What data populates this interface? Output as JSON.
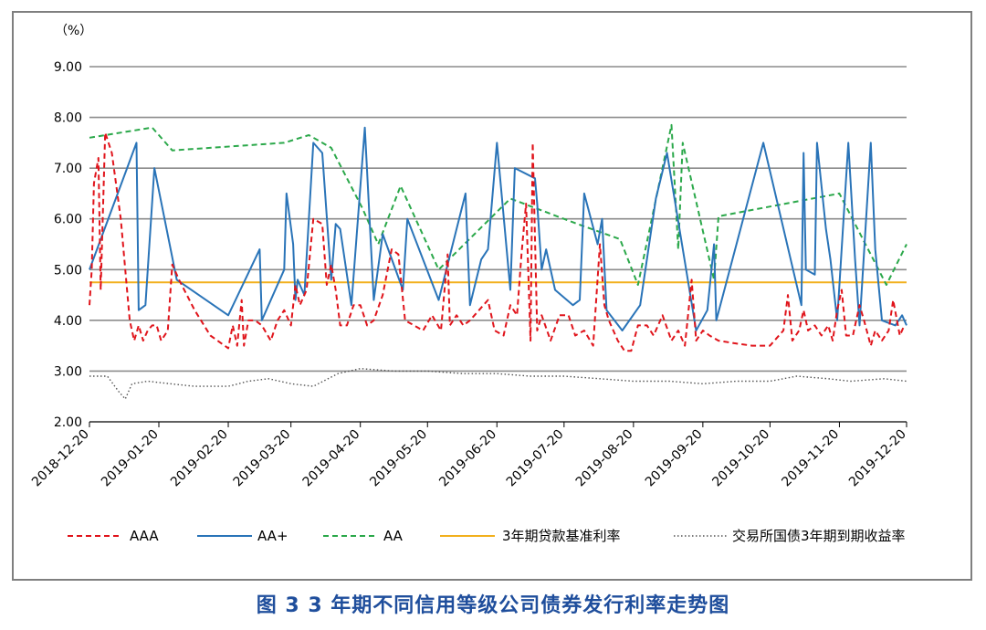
{
  "caption": "图 3  3 年期不同信用等级公司债券发行利率走势图",
  "chart_data": {
    "type": "line",
    "unit_label": "（%）",
    "ylim": [
      2.0,
      9.0
    ],
    "y_ticks": [
      "2.00",
      "3.00",
      "4.00",
      "5.00",
      "6.00",
      "7.00",
      "8.00",
      "9.00"
    ],
    "x_ticks": [
      "2018-12-20",
      "2019-01-20",
      "2019-02-20",
      "2019-03-20",
      "2019-04-20",
      "2019-05-20",
      "2019-06-20",
      "2019-07-20",
      "2019-08-20",
      "2019-09-20",
      "2019-10-20",
      "2019-11-20",
      "2019-12-20"
    ],
    "grid": true,
    "legend_position": "bottom",
    "series": [
      {
        "name": "AAA",
        "color": "#e0141b",
        "style": "dashed",
        "points": [
          [
            "2018-12-20",
            4.3
          ],
          [
            "2018-12-21",
            5.0
          ],
          [
            "2018-12-22",
            6.7
          ],
          [
            "2018-12-24",
            7.2
          ],
          [
            "2018-12-25",
            4.6
          ],
          [
            "2018-12-27",
            7.7
          ],
          [
            "2018-12-30",
            7.3
          ],
          [
            "2019-01-03",
            6.0
          ],
          [
            "2019-01-07",
            4.0
          ],
          [
            "2019-01-09",
            3.6
          ],
          [
            "2019-01-11",
            3.9
          ],
          [
            "2019-01-13",
            3.6
          ],
          [
            "2019-01-15",
            3.8
          ],
          [
            "2019-01-17",
            3.9
          ],
          [
            "2019-01-19",
            3.9
          ],
          [
            "2019-01-21",
            3.6
          ],
          [
            "2019-01-24",
            3.8
          ],
          [
            "2019-01-26",
            5.1
          ],
          [
            "2019-01-29",
            4.8
          ],
          [
            "2019-02-05",
            4.2
          ],
          [
            "2019-02-12",
            3.7
          ],
          [
            "2019-02-20",
            3.45
          ],
          [
            "2019-02-22",
            3.9
          ],
          [
            "2019-02-24",
            3.5
          ],
          [
            "2019-02-26",
            4.4
          ],
          [
            "2019-02-27",
            3.5
          ],
          [
            "2019-03-01",
            4.0
          ],
          [
            "2019-03-04",
            4.0
          ],
          [
            "2019-03-07",
            3.9
          ],
          [
            "2019-03-11",
            3.6
          ],
          [
            "2019-03-14",
            4.0
          ],
          [
            "2019-03-17",
            4.2
          ],
          [
            "2019-03-20",
            3.9
          ],
          [
            "2019-03-22",
            4.7
          ],
          [
            "2019-03-24",
            4.3
          ],
          [
            "2019-03-27",
            4.6
          ],
          [
            "2019-03-30",
            6.0
          ],
          [
            "2019-04-03",
            5.9
          ],
          [
            "2019-04-05",
            4.7
          ],
          [
            "2019-04-07",
            5.1
          ],
          [
            "2019-04-09",
            4.6
          ],
          [
            "2019-04-11",
            3.9
          ],
          [
            "2019-04-14",
            3.9
          ],
          [
            "2019-04-17",
            4.3
          ],
          [
            "2019-04-20",
            4.3
          ],
          [
            "2019-04-23",
            3.9
          ],
          [
            "2019-04-26",
            4.0
          ],
          [
            "2019-04-30",
            4.5
          ],
          [
            "2019-05-04",
            5.4
          ],
          [
            "2019-05-07",
            5.3
          ],
          [
            "2019-05-10",
            4.0
          ],
          [
            "2019-05-14",
            3.9
          ],
          [
            "2019-05-18",
            3.8
          ],
          [
            "2019-05-22",
            4.1
          ],
          [
            "2019-05-26",
            3.8
          ],
          [
            "2019-05-29",
            5.3
          ],
          [
            "2019-05-30",
            3.9
          ],
          [
            "2019-06-02",
            4.1
          ],
          [
            "2019-06-05",
            3.9
          ],
          [
            "2019-06-08",
            4.0
          ],
          [
            "2019-06-12",
            4.2
          ],
          [
            "2019-06-16",
            4.4
          ],
          [
            "2019-06-19",
            3.8
          ],
          [
            "2019-06-23",
            3.7
          ],
          [
            "2019-06-26",
            4.3
          ],
          [
            "2019-06-29",
            4.1
          ],
          [
            "2019-07-01",
            5.3
          ],
          [
            "2019-07-03",
            6.3
          ],
          [
            "2019-07-05",
            3.6
          ],
          [
            "2019-07-06",
            7.5
          ],
          [
            "2019-07-08",
            3.8
          ],
          [
            "2019-07-10",
            4.1
          ],
          [
            "2019-07-14",
            3.6
          ],
          [
            "2019-07-18",
            4.1
          ],
          [
            "2019-07-22",
            4.1
          ],
          [
            "2019-07-25",
            3.7
          ],
          [
            "2019-07-29",
            3.8
          ],
          [
            "2019-08-02",
            3.5
          ],
          [
            "2019-08-05",
            5.5
          ],
          [
            "2019-08-07",
            4.3
          ],
          [
            "2019-08-09",
            4.0
          ],
          [
            "2019-08-13",
            3.6
          ],
          [
            "2019-08-16",
            3.4
          ],
          [
            "2019-08-19",
            3.4
          ],
          [
            "2019-08-22",
            3.9
          ],
          [
            "2019-08-26",
            3.9
          ],
          [
            "2019-08-29",
            3.7
          ],
          [
            "2019-09-02",
            4.1
          ],
          [
            "2019-09-06",
            3.6
          ],
          [
            "2019-09-09",
            3.8
          ],
          [
            "2019-09-12",
            3.5
          ],
          [
            "2019-09-15",
            4.8
          ],
          [
            "2019-09-17",
            3.6
          ],
          [
            "2019-09-20",
            3.8
          ],
          [
            "2019-09-23",
            3.7
          ],
          [
            "2019-09-27",
            3.6
          ],
          [
            "2019-10-04",
            3.55
          ],
          [
            "2019-10-12",
            3.5
          ],
          [
            "2019-10-20",
            3.5
          ],
          [
            "2019-10-26",
            3.8
          ],
          [
            "2019-10-28",
            4.5
          ],
          [
            "2019-10-30",
            3.6
          ],
          [
            "2019-11-02",
            3.8
          ],
          [
            "2019-11-04",
            4.2
          ],
          [
            "2019-11-06",
            3.8
          ],
          [
            "2019-11-09",
            3.9
          ],
          [
            "2019-11-12",
            3.7
          ],
          [
            "2019-11-15",
            3.9
          ],
          [
            "2019-11-17",
            3.6
          ],
          [
            "2019-11-19",
            4.2
          ],
          [
            "2019-11-21",
            4.6
          ],
          [
            "2019-11-23",
            3.7
          ],
          [
            "2019-11-26",
            3.7
          ],
          [
            "2019-11-29",
            4.3
          ],
          [
            "2019-12-01",
            4.0
          ],
          [
            "2019-12-04",
            3.5
          ],
          [
            "2019-12-06",
            3.8
          ],
          [
            "2019-12-09",
            3.6
          ],
          [
            "2019-12-12",
            3.8
          ],
          [
            "2019-12-14",
            4.4
          ],
          [
            "2019-12-17",
            3.7
          ],
          [
            "2019-12-19",
            3.9
          ]
        ]
      },
      {
        "name": "AA+",
        "color": "#2a74b8",
        "style": "solid",
        "points": [
          [
            "2018-12-20",
            5.0
          ],
          [
            "2019-01-10",
            7.5
          ],
          [
            "2019-01-11",
            4.2
          ],
          [
            "2019-01-14",
            4.3
          ],
          [
            "2019-01-18",
            7.0
          ],
          [
            "2019-01-28",
            4.8
          ],
          [
            "2019-02-20",
            4.1
          ],
          [
            "2019-03-06",
            5.4
          ],
          [
            "2019-03-07",
            4.0
          ],
          [
            "2019-03-17",
            5.0
          ],
          [
            "2019-03-18",
            6.5
          ],
          [
            "2019-03-21",
            5.5
          ],
          [
            "2019-03-22",
            4.4
          ],
          [
            "2019-03-23",
            4.8
          ],
          [
            "2019-03-26",
            4.5
          ],
          [
            "2019-03-30",
            7.5
          ],
          [
            "2019-04-03",
            7.3
          ],
          [
            "2019-04-07",
            4.8
          ],
          [
            "2019-04-09",
            5.9
          ],
          [
            "2019-04-11",
            5.8
          ],
          [
            "2019-04-16",
            4.3
          ],
          [
            "2019-04-22",
            7.8
          ],
          [
            "2019-04-26",
            4.4
          ],
          [
            "2019-04-30",
            5.7
          ],
          [
            "2019-05-09",
            4.6
          ],
          [
            "2019-05-11",
            6.0
          ],
          [
            "2019-05-25",
            4.4
          ],
          [
            "2019-06-06",
            6.5
          ],
          [
            "2019-06-08",
            4.3
          ],
          [
            "2019-06-13",
            5.2
          ],
          [
            "2019-06-16",
            5.4
          ],
          [
            "2019-06-20",
            7.5
          ],
          [
            "2019-06-26",
            4.6
          ],
          [
            "2019-06-28",
            7.0
          ],
          [
            "2019-07-07",
            6.8
          ],
          [
            "2019-07-08",
            6.3
          ],
          [
            "2019-07-10",
            5.0
          ],
          [
            "2019-07-12",
            5.4
          ],
          [
            "2019-07-16",
            4.6
          ],
          [
            "2019-07-24",
            4.3
          ],
          [
            "2019-07-27",
            4.4
          ],
          [
            "2019-07-29",
            6.5
          ],
          [
            "2019-08-04",
            5.5
          ],
          [
            "2019-08-06",
            6.0
          ],
          [
            "2019-08-08",
            4.2
          ],
          [
            "2019-08-15",
            3.8
          ],
          [
            "2019-08-23",
            4.3
          ],
          [
            "2019-08-30",
            6.4
          ],
          [
            "2019-09-04",
            7.3
          ],
          [
            "2019-09-17",
            3.8
          ],
          [
            "2019-09-22",
            4.2
          ],
          [
            "2019-09-25",
            5.5
          ],
          [
            "2019-09-26",
            4.0
          ],
          [
            "2019-10-17",
            7.5
          ],
          [
            "2019-11-03",
            4.3
          ],
          [
            "2019-11-04",
            7.3
          ],
          [
            "2019-11-05",
            5.0
          ],
          [
            "2019-11-09",
            4.9
          ],
          [
            "2019-11-10",
            7.5
          ],
          [
            "2019-11-14",
            5.8
          ],
          [
            "2019-11-16",
            5.2
          ],
          [
            "2019-11-19",
            4.0
          ],
          [
            "2019-11-24",
            7.5
          ],
          [
            "2019-11-27",
            5.2
          ],
          [
            "2019-11-29",
            3.9
          ],
          [
            "2019-12-04",
            7.5
          ],
          [
            "2019-12-06",
            5.4
          ],
          [
            "2019-12-09",
            4.0
          ],
          [
            "2019-12-15",
            3.9
          ],
          [
            "2019-12-18",
            4.1
          ],
          [
            "2019-12-20",
            3.9
          ]
        ]
      },
      {
        "name": "AA",
        "color": "#2ba84a",
        "style": "dashed",
        "points": [
          [
            "2018-12-20",
            7.6
          ],
          [
            "2019-01-17",
            7.8
          ],
          [
            "2019-01-26",
            7.35
          ],
          [
            "2019-03-17",
            7.5
          ],
          [
            "2019-03-28",
            7.65
          ],
          [
            "2019-04-07",
            7.4
          ],
          [
            "2019-04-21",
            6.2
          ],
          [
            "2019-04-28",
            5.5
          ],
          [
            "2019-05-08",
            6.65
          ],
          [
            "2019-05-25",
            5.0
          ],
          [
            "2019-06-26",
            6.4
          ],
          [
            "2019-07-26",
            5.9
          ],
          [
            "2019-08-14",
            5.6
          ],
          [
            "2019-08-22",
            4.7
          ],
          [
            "2019-09-06",
            7.85
          ],
          [
            "2019-09-09",
            5.4
          ],
          [
            "2019-09-11",
            7.5
          ],
          [
            "2019-09-25",
            4.8
          ],
          [
            "2019-09-27",
            6.05
          ],
          [
            "2019-11-20",
            6.5
          ],
          [
            "2019-12-11",
            4.7
          ],
          [
            "2019-12-20",
            5.5
          ]
        ]
      },
      {
        "name": "3年期贷款基准利率",
        "color": "#f2b01e",
        "style": "solid",
        "points": [
          [
            "2018-12-20",
            4.75
          ],
          [
            "2019-12-20",
            4.75
          ]
        ]
      },
      {
        "name": "交易所国债3年期到期收益率",
        "color": "#555555",
        "style": "dotted",
        "points": [
          [
            "2018-12-20",
            2.9
          ],
          [
            "2018-12-28",
            2.9
          ],
          [
            "2019-01-02",
            2.6
          ],
          [
            "2019-01-05",
            2.45
          ],
          [
            "2019-01-08",
            2.75
          ],
          [
            "2019-01-15",
            2.8
          ],
          [
            "2019-01-25",
            2.75
          ],
          [
            "2019-02-05",
            2.7
          ],
          [
            "2019-02-20",
            2.7
          ],
          [
            "2019-03-01",
            2.8
          ],
          [
            "2019-03-10",
            2.85
          ],
          [
            "2019-03-20",
            2.75
          ],
          [
            "2019-03-30",
            2.7
          ],
          [
            "2019-04-10",
            2.95
          ],
          [
            "2019-04-20",
            3.05
          ],
          [
            "2019-05-05",
            3.0
          ],
          [
            "2019-05-20",
            3.0
          ],
          [
            "2019-06-05",
            2.95
          ],
          [
            "2019-06-20",
            2.95
          ],
          [
            "2019-07-05",
            2.9
          ],
          [
            "2019-07-20",
            2.9
          ],
          [
            "2019-08-05",
            2.85
          ],
          [
            "2019-08-20",
            2.8
          ],
          [
            "2019-09-05",
            2.8
          ],
          [
            "2019-09-20",
            2.75
          ],
          [
            "2019-10-05",
            2.8
          ],
          [
            "2019-10-20",
            2.8
          ],
          [
            "2019-11-01",
            2.9
          ],
          [
            "2019-11-15",
            2.85
          ],
          [
            "2019-11-25",
            2.8
          ],
          [
            "2019-12-10",
            2.85
          ],
          [
            "2019-12-20",
            2.8
          ]
        ]
      }
    ]
  }
}
